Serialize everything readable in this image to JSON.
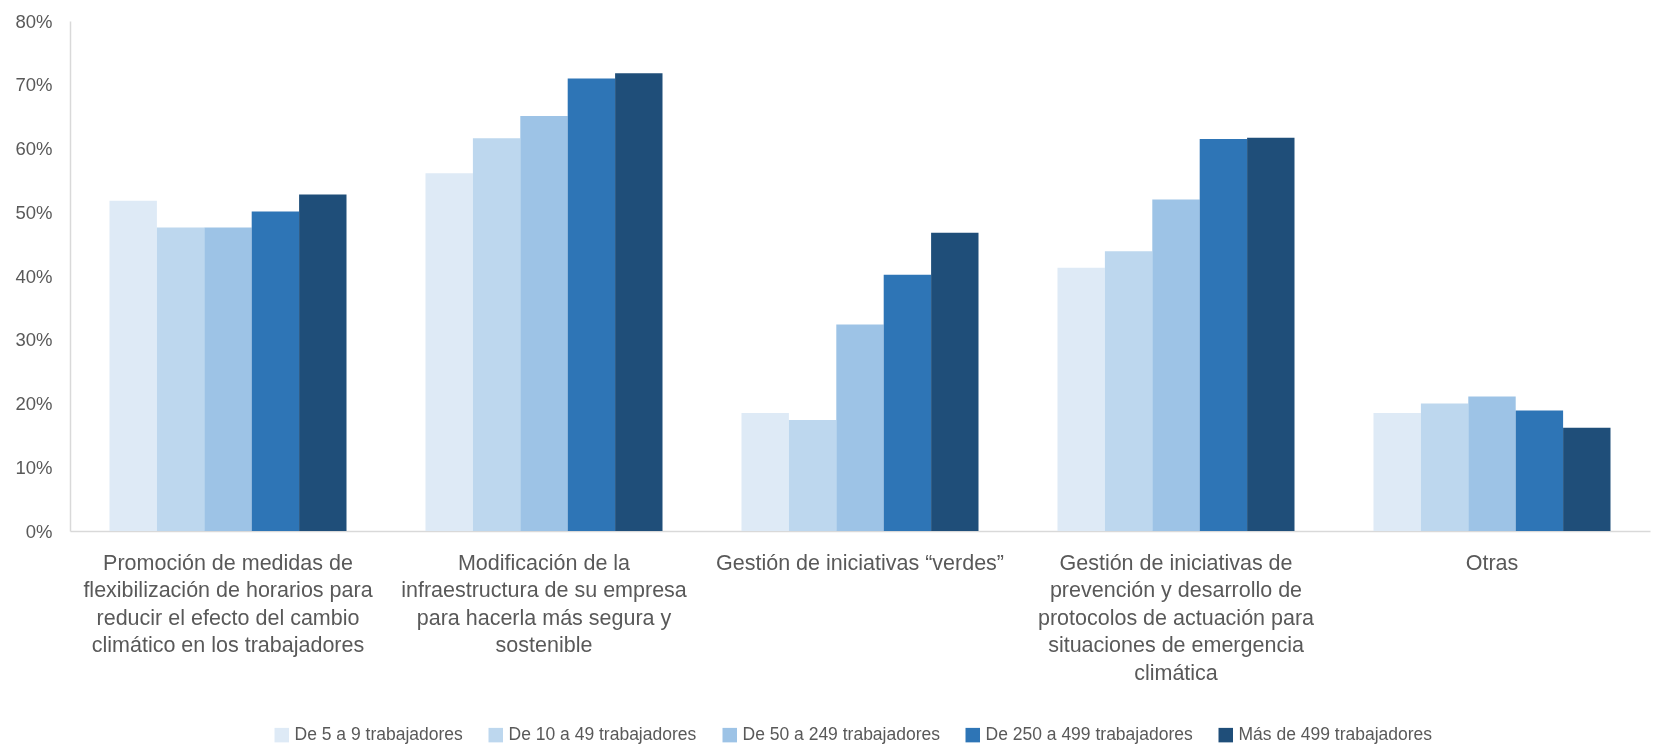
{
  "chart_data": {
    "type": "bar",
    "categories": [
      "Promoción de medidas de flexibilización de horarios para reducir el efecto del cambio climático en los trabajadores",
      "Modificación de la infraestructura de su empresa para hacerla más segura y sostenible",
      "Gestión de iniciativas “verdes”",
      "Gestión de iniciativas de prevención y desarrollo de protocolos de actuación para situaciones de emergencia climática",
      "Otras"
    ],
    "series": [
      {
        "name": "De 5 a 9 trabajadores",
        "color": "#deeaf6",
        "values": [
          51.8,
          56.1,
          18.5,
          41.3,
          18.5
        ]
      },
      {
        "name": "De 10 a 49 trabajadores",
        "color": "#bdd7ee",
        "values": [
          47.6,
          61.6,
          17.4,
          43.9,
          20.0
        ]
      },
      {
        "name": "De 50 a 249 trabajadores",
        "color": "#9dc3e6",
        "values": [
          47.6,
          65.1,
          32.4,
          52.0,
          21.1
        ]
      },
      {
        "name": "De 250 a 499 trabajadores",
        "color": "#2e75b6",
        "values": [
          50.1,
          71.0,
          40.2,
          61.5,
          18.9
        ]
      },
      {
        "name": "Más de 499 trabajadores",
        "color": "#1f4e79",
        "values": [
          52.8,
          71.8,
          46.8,
          61.7,
          16.2
        ]
      }
    ],
    "ylim": [
      0,
      80
    ],
    "yticks": [
      {
        "value": 0,
        "label": "0%"
      },
      {
        "value": 10,
        "label": "10%"
      },
      {
        "value": 20,
        "label": "20%"
      },
      {
        "value": 30,
        "label": "30%"
      },
      {
        "value": 40,
        "label": "40%"
      },
      {
        "value": 50,
        "label": "50%"
      },
      {
        "value": 60,
        "label": "60%"
      },
      {
        "value": 70,
        "label": "70%"
      },
      {
        "value": 80,
        "label": "80%"
      }
    ],
    "grid": false,
    "legend": "bottom"
  }
}
